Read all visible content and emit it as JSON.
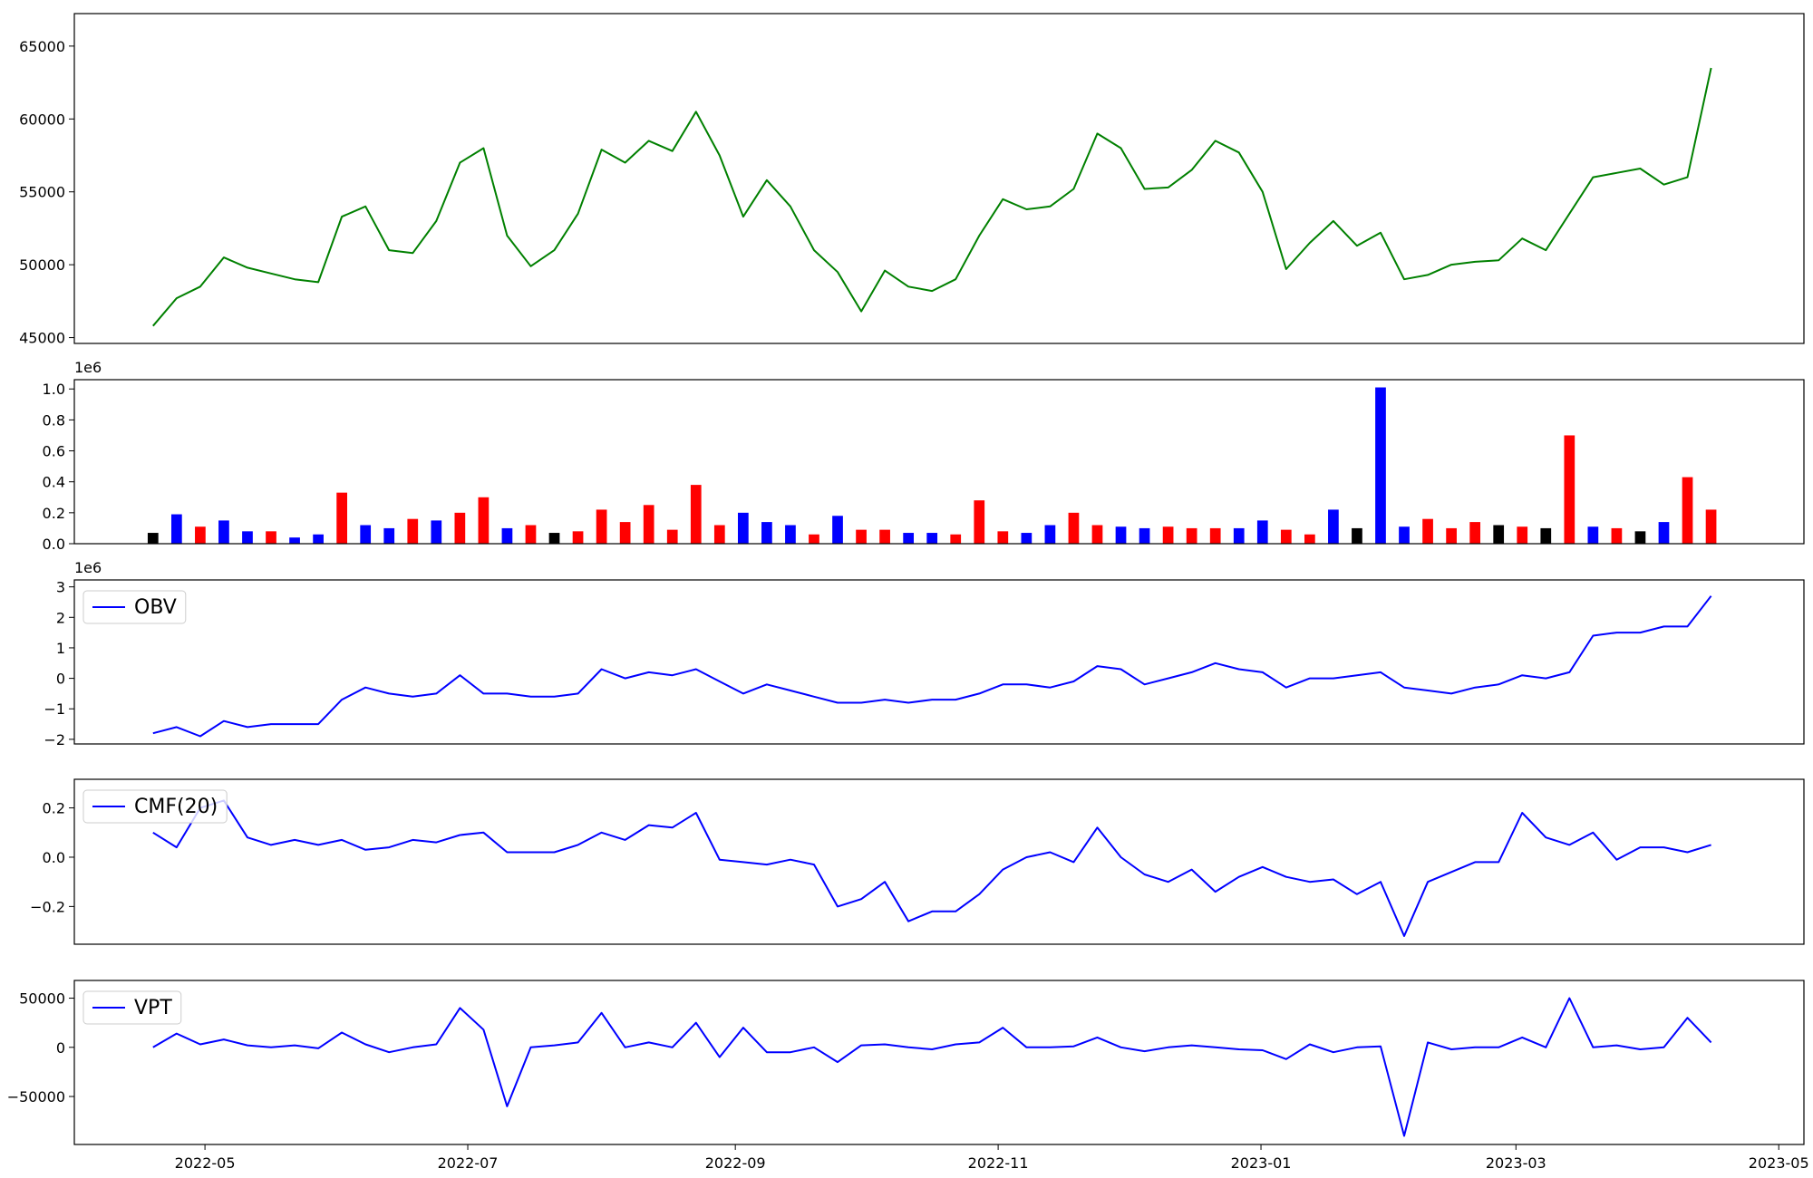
{
  "chart_data": [
    {
      "type": "line",
      "color": "#008000",
      "x": [
        2022.296,
        2022.311,
        2022.326,
        2022.341,
        2022.356,
        2022.371,
        2022.386,
        2022.401,
        2022.416,
        2022.431,
        2022.446,
        2022.461,
        2022.476,
        2022.491,
        2022.506,
        2022.521,
        2022.536,
        2022.551,
        2022.566,
        2022.581,
        2022.596,
        2022.611,
        2022.626,
        2022.641,
        2022.656,
        2022.671,
        2022.686,
        2022.701,
        2022.716,
        2022.731,
        2022.746,
        2022.761,
        2022.776,
        2022.791,
        2022.806,
        2022.821,
        2022.836,
        2022.851,
        2022.866,
        2022.881,
        2022.896,
        2022.911,
        2022.926,
        2022.941,
        2022.956,
        2022.971,
        2022.986,
        2023.001,
        2023.016,
        2023.031,
        2023.046,
        2023.061,
        2023.076,
        2023.091,
        2023.106,
        2023.121,
        2023.136,
        2023.151,
        2023.166,
        2023.181,
        2023.196,
        2023.211,
        2023.226,
        2023.241,
        2023.256,
        2023.271,
        2023.286
      ],
      "values": [
        45800,
        47700,
        48500,
        50500,
        49800,
        49400,
        49000,
        48800,
        53300,
        54000,
        51000,
        50800,
        53000,
        57000,
        58000,
        52000,
        49900,
        51000,
        53500,
        57900,
        57000,
        58500,
        57800,
        60500,
        57500,
        53300,
        55800,
        54000,
        51000,
        49500,
        46800,
        49600,
        48500,
        48200,
        49000,
        52000,
        54500,
        53800,
        54000,
        55200,
        59000,
        58000,
        55200,
        55300,
        56500,
        58500,
        57700,
        55000,
        49700,
        51500,
        53000,
        51300,
        52200,
        49000,
        49300,
        50000,
        50200,
        50300,
        51800,
        51000,
        53500,
        56000,
        56300,
        56600,
        55500,
        56000,
        63500
      ],
      "xlim": [
        2022.246,
        2023.345
      ],
      "ylim": [
        44600,
        67230
      ],
      "yticks": [
        45000,
        50000,
        55000,
        60000,
        65000
      ]
    },
    {
      "type": "bar",
      "offset_label": "1e6",
      "x": [
        2022.296,
        2022.311,
        2022.326,
        2022.341,
        2022.356,
        2022.371,
        2022.386,
        2022.401,
        2022.416,
        2022.431,
        2022.446,
        2022.461,
        2022.476,
        2022.491,
        2022.506,
        2022.521,
        2022.536,
        2022.551,
        2022.566,
        2022.581,
        2022.596,
        2022.611,
        2022.626,
        2022.641,
        2022.656,
        2022.671,
        2022.686,
        2022.701,
        2022.716,
        2022.731,
        2022.746,
        2022.761,
        2022.776,
        2022.791,
        2022.806,
        2022.821,
        2022.836,
        2022.851,
        2022.866,
        2022.881,
        2022.896,
        2022.911,
        2022.926,
        2022.941,
        2022.956,
        2022.971,
        2022.986,
        2023.001,
        2023.016,
        2023.031,
        2023.046,
        2023.061,
        2023.076,
        2023.091,
        2023.106,
        2023.121,
        2023.136,
        2023.151,
        2023.166,
        2023.181,
        2023.196,
        2023.211,
        2023.226,
        2023.241,
        2023.256,
        2023.271,
        2023.286
      ],
      "values": [
        70000,
        190000,
        110000,
        150000,
        80000,
        80000,
        40000,
        60000,
        330000,
        120000,
        100000,
        160000,
        150000,
        200000,
        300000,
        100000,
        120000,
        70000,
        80000,
        220000,
        140000,
        250000,
        90000,
        380000,
        120000,
        200000,
        140000,
        120000,
        60000,
        180000,
        90000,
        90000,
        70000,
        70000,
        60000,
        280000,
        80000,
        70000,
        120000,
        200000,
        120000,
        110000,
        100000,
        110000,
        100000,
        100000,
        100000,
        150000,
        90000,
        60000,
        220000,
        100000,
        1010000,
        110000,
        160000,
        100000,
        140000,
        120000,
        110000,
        100000,
        700000,
        110000,
        100000,
        80000,
        140000,
        430000,
        220000
      ],
      "colors": [
        "black",
        "blue",
        "red",
        "blue",
        "blue",
        "red",
        "blue",
        "blue",
        "red",
        "blue",
        "blue",
        "red",
        "blue",
        "red",
        "red",
        "blue",
        "red",
        "black",
        "red",
        "red",
        "red",
        "red",
        "red",
        "red",
        "red",
        "blue",
        "blue",
        "blue",
        "red",
        "blue",
        "red",
        "red",
        "blue",
        "blue",
        "red",
        "red",
        "red",
        "blue",
        "blue",
        "red",
        "red",
        "blue",
        "blue",
        "red",
        "red",
        "red",
        "blue",
        "blue",
        "red",
        "red",
        "blue",
        "black",
        "blue",
        "blue",
        "red",
        "red",
        "red",
        "black",
        "red",
        "black",
        "red",
        "blue",
        "red",
        "black",
        "blue",
        "red",
        "red"
      ],
      "xlim": [
        2022.246,
        2023.345
      ],
      "ylim": [
        0,
        1060000
      ],
      "yticks": [
        {
          "value": 0,
          "label": "0.0"
        },
        {
          "value": 200000,
          "label": "0.2"
        },
        {
          "value": 400000,
          "label": "0.4"
        },
        {
          "value": 600000,
          "label": "0.6"
        },
        {
          "value": 800000,
          "label": "0.8"
        },
        {
          "value": 1000000,
          "label": "1.0"
        }
      ]
    },
    {
      "type": "line",
      "offset_label": "1e6",
      "legend": "upper left",
      "x": [
        2022.296,
        2022.311,
        2022.326,
        2022.341,
        2022.356,
        2022.371,
        2022.386,
        2022.401,
        2022.416,
        2022.431,
        2022.446,
        2022.461,
        2022.476,
        2022.491,
        2022.506,
        2022.521,
        2022.536,
        2022.551,
        2022.566,
        2022.581,
        2022.596,
        2022.611,
        2022.626,
        2022.641,
        2022.656,
        2022.671,
        2022.686,
        2022.701,
        2022.716,
        2022.731,
        2022.746,
        2022.761,
        2022.776,
        2022.791,
        2022.806,
        2022.821,
        2022.836,
        2022.851,
        2022.866,
        2022.881,
        2022.896,
        2022.911,
        2022.926,
        2022.941,
        2022.956,
        2022.971,
        2022.986,
        2023.001,
        2023.016,
        2023.031,
        2023.046,
        2023.061,
        2023.076,
        2023.091,
        2023.106,
        2023.121,
        2023.136,
        2023.151,
        2023.166,
        2023.181,
        2023.196,
        2023.211,
        2023.226,
        2023.241,
        2023.256,
        2023.271,
        2023.286
      ],
      "series": [
        {
          "name": "OBV",
          "color": "#0000ff",
          "values": [
            -1800000,
            -1600000,
            -1900000,
            -1400000,
            -1600000,
            -1500000,
            -1500000,
            -1500000,
            -700000,
            -300000,
            -500000,
            -600000,
            -500000,
            100000,
            -500000,
            -500000,
            -600000,
            -600000,
            -500000,
            300000,
            0,
            200000,
            100000,
            300000,
            -100000,
            -500000,
            -200000,
            -400000,
            -600000,
            -800000,
            -800000,
            -700000,
            -800000,
            -700000,
            -700000,
            -500000,
            -200000,
            -200000,
            -300000,
            -100000,
            400000,
            300000,
            -200000,
            0,
            200000,
            500000,
            300000,
            200000,
            -300000,
            0,
            0,
            100000,
            200000,
            -300000,
            -400000,
            -500000,
            -300000,
            -200000,
            100000,
            0,
            200000,
            1400000,
            1500000,
            1500000,
            1700000,
            1700000,
            2700000
          ]
        }
      ],
      "xlim": [
        2022.246,
        2023.345
      ],
      "ylim": [
        -2152000,
        3227000
      ],
      "yticks": [
        {
          "value": -2000000,
          "label": "−2"
        },
        {
          "value": -1000000,
          "label": "−1"
        },
        {
          "value": 0,
          "label": "0"
        },
        {
          "value": 1000000,
          "label": "1"
        },
        {
          "value": 2000000,
          "label": "2"
        },
        {
          "value": 3000000,
          "label": "3"
        }
      ]
    },
    {
      "type": "line",
      "legend": "upper left",
      "x": [
        2022.296,
        2022.311,
        2022.326,
        2022.341,
        2022.356,
        2022.371,
        2022.386,
        2022.401,
        2022.416,
        2022.431,
        2022.446,
        2022.461,
        2022.476,
        2022.491,
        2022.506,
        2022.521,
        2022.536,
        2022.551,
        2022.566,
        2022.581,
        2022.596,
        2022.611,
        2022.626,
        2022.641,
        2022.656,
        2022.671,
        2022.686,
        2022.701,
        2022.716,
        2022.731,
        2022.746,
        2022.761,
        2022.776,
        2022.791,
        2022.806,
        2022.821,
        2022.836,
        2022.851,
        2022.866,
        2022.881,
        2022.896,
        2022.911,
        2022.926,
        2022.941,
        2022.956,
        2022.971,
        2022.986,
        2023.001,
        2023.016,
        2023.031,
        2023.046,
        2023.061,
        2023.076,
        2023.091,
        2023.106,
        2023.121,
        2023.136,
        2023.151,
        2023.166,
        2023.181,
        2023.196,
        2023.211,
        2023.226,
        2023.241,
        2023.256,
        2023.271,
        2023.286
      ],
      "series": [
        {
          "name": "CMF(20)",
          "color": "#0000ff",
          "values": [
            0.1,
            0.04,
            0.2,
            0.23,
            0.08,
            0.05,
            0.07,
            0.05,
            0.07,
            0.03,
            0.04,
            0.07,
            0.06,
            0.09,
            0.1,
            0.02,
            0.02,
            0.02,
            0.05,
            0.1,
            0.07,
            0.13,
            0.12,
            0.18,
            -0.01,
            -0.02,
            -0.03,
            -0.01,
            -0.03,
            -0.2,
            -0.17,
            -0.1,
            -0.26,
            -0.22,
            -0.22,
            -0.15,
            -0.05,
            0.0,
            0.02,
            -0.02,
            0.12,
            0.0,
            -0.07,
            -0.1,
            -0.05,
            -0.14,
            -0.08,
            -0.04,
            -0.08,
            -0.1,
            -0.09,
            -0.15,
            -0.1,
            -0.32,
            -0.1,
            -0.06,
            -0.02,
            -0.02,
            0.18,
            0.08,
            0.05,
            0.1,
            -0.01,
            0.04,
            0.04,
            0.02,
            0.05
          ]
        }
      ],
      "xlim": [
        2022.246,
        2023.345
      ],
      "ylim": [
        -0.353,
        0.316
      ],
      "yticks": [
        {
          "value": -0.2,
          "label": "−0.2"
        },
        {
          "value": 0,
          "label": "0.0"
        },
        0.2
      ]
    },
    {
      "type": "line",
      "legend": "upper left",
      "x": [
        2022.296,
        2022.311,
        2022.326,
        2022.341,
        2022.356,
        2022.371,
        2022.386,
        2022.401,
        2022.416,
        2022.431,
        2022.446,
        2022.461,
        2022.476,
        2022.491,
        2022.506,
        2022.521,
        2022.536,
        2022.551,
        2022.566,
        2022.581,
        2022.596,
        2022.611,
        2022.626,
        2022.641,
        2022.656,
        2022.671,
        2022.686,
        2022.701,
        2022.716,
        2022.731,
        2022.746,
        2022.761,
        2022.776,
        2022.791,
        2022.806,
        2022.821,
        2022.836,
        2022.851,
        2022.866,
        2022.881,
        2022.896,
        2022.911,
        2022.926,
        2022.941,
        2022.956,
        2022.971,
        2022.986,
        2023.001,
        2023.016,
        2023.031,
        2023.046,
        2023.061,
        2023.076,
        2023.091,
        2023.106,
        2023.121,
        2023.136,
        2023.151,
        2023.166,
        2023.181,
        2023.196,
        2023.211,
        2023.226,
        2023.241,
        2023.256,
        2023.271,
        2023.286
      ],
      "series": [
        {
          "name": "VPT",
          "color": "#0000ff",
          "values": [
            0,
            14000,
            3000,
            8000,
            2000,
            0,
            2000,
            -1000,
            15000,
            3000,
            -5000,
            0,
            3000,
            40000,
            18000,
            -60000,
            0,
            2000,
            5000,
            35000,
            0,
            5000,
            0,
            25000,
            -10000,
            20000,
            -5000,
            -5000,
            0,
            -15000,
            2000,
            3000,
            0,
            -2000,
            3000,
            5000,
            20000,
            0,
            0,
            1000,
            10000,
            0,
            -4000,
            0,
            2000,
            0,
            -2000,
            -3000,
            -12000,
            3000,
            -5000,
            0,
            1000,
            -90000,
            5000,
            -2000,
            0,
            0,
            10000,
            0,
            50000,
            0,
            2000,
            -2000,
            0,
            30000,
            5000
          ]
        }
      ],
      "xlim": [
        2022.246,
        2023.345
      ],
      "ylim": [
        -98800,
        68000
      ],
      "yticks": [
        {
          "value": -50000,
          "label": "−50000"
        },
        0,
        50000
      ],
      "xticks": [
        {
          "value": 2022.329,
          "label": "2022-05"
        },
        {
          "value": 2022.496,
          "label": "2022-07"
        },
        {
          "value": 2022.666,
          "label": "2022-09"
        },
        {
          "value": 2022.833,
          "label": "2022-11"
        },
        {
          "value": 2023.0,
          "label": "2023-01"
        },
        {
          "value": 2023.162,
          "label": "2023-03"
        },
        {
          "value": 2023.329,
          "label": "2023-05"
        }
      ]
    }
  ]
}
